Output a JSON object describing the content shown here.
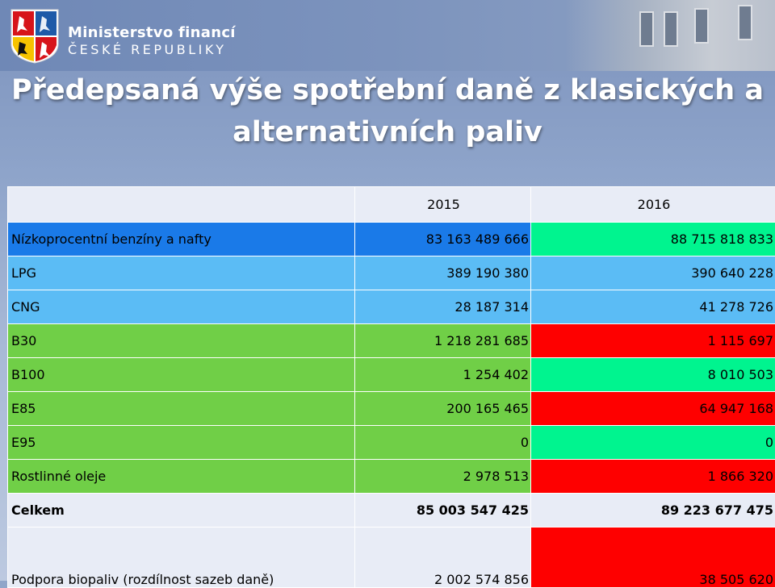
{
  "header": {
    "ministry_line1": "Ministerstvo financí",
    "ministry_line2": "ČESKÉ REPUBLIKY",
    "logo": "czech-coat-of-arms"
  },
  "title": {
    "line1": "Předepsaná výše spotřební daně z klasických a",
    "line2": "alternativních paliv"
  },
  "table": {
    "columns": [
      "",
      "2015",
      "2016"
    ],
    "rows": [
      {
        "label": "Nízkoprocentní benzíny a nafty",
        "v2015": "83 163 489 666",
        "v2016": "88 715 818 833"
      },
      {
        "label": "LPG",
        "v2015": "389 190 380",
        "v2016": "390 640 228"
      },
      {
        "label": "CNG",
        "v2015": "28 187 314",
        "v2016": "41 278 726"
      },
      {
        "label": "B30",
        "v2015": "1 218 281 685",
        "v2016": "1 115 697"
      },
      {
        "label": "B100",
        "v2015": "1 254 402",
        "v2016": "8 010 503"
      },
      {
        "label": "E85",
        "v2015": "200 165 465",
        "v2016": "64 947 168"
      },
      {
        "label": "E95",
        "v2015": "0",
        "v2016": "0"
      },
      {
        "label": "Rostlinné oleje",
        "v2015": "2 978 513",
        "v2016": "1 866 320"
      },
      {
        "label": "Celkem",
        "v2015": "85 003 547 425",
        "v2016": "89 223 677 475"
      },
      {
        "label": "Podpora biopaliv (rozdílnost sazeb daně)",
        "v2015": "2 002 574 856",
        "v2016": "38 505 620"
      }
    ]
  },
  "colors": {
    "blue": "#1a7ae8",
    "light_blue": "#5bbcf5",
    "green": "#70cf47",
    "mint": "#00f48f",
    "red": "#fe0000",
    "gray": "#e8ecf6"
  }
}
